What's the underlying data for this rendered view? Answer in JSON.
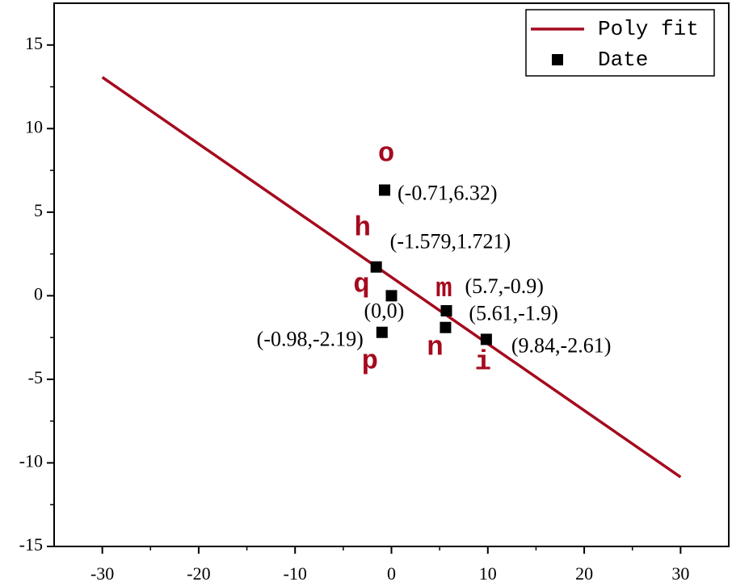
{
  "chart_data": {
    "type": "scatter",
    "xlim": [
      -35,
      35
    ],
    "ylim": [
      -15,
      17.5
    ],
    "xticks": [
      -30,
      -20,
      -10,
      0,
      10,
      20,
      30
    ],
    "yticks": [
      -15,
      -10,
      -5,
      0,
      5,
      10,
      15
    ],
    "legend": "upper right",
    "series": [
      {
        "name": "Poly fit",
        "type": "line",
        "color": "#a50a1e",
        "x": [
          -30,
          30
        ],
        "values": [
          13.07,
          -10.85
        ]
      },
      {
        "name": "Date",
        "type": "scatter",
        "color": "#000000",
        "x": [
          -0.71,
          -1.579,
          0,
          5.7,
          5.61,
          9.84,
          -0.98
        ],
        "values": [
          6.32,
          1.721,
          0,
          -0.9,
          -1.9,
          -2.61,
          -2.19
        ],
        "value_labels": [
          "(-0.71,6.32)",
          "(-1.579,1.721)",
          "(0,0)",
          "(5.7,-0.9)",
          "(5.61,-1.9)",
          "(9.84,-2.61)",
          "(-0.98,-2.19)"
        ],
        "annotations": [
          "o",
          "h",
          "q",
          "m",
          "n",
          "i",
          "p"
        ]
      }
    ]
  }
}
